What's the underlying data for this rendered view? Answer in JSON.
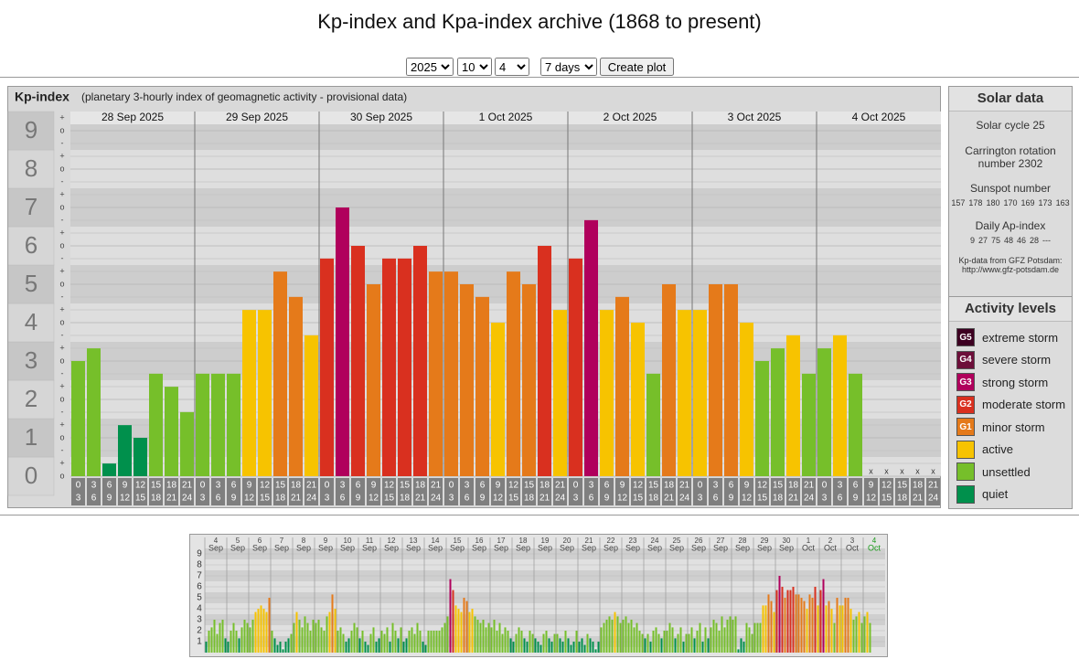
{
  "header": {
    "title": "Kp-index and Kpa-index archive (1868 to present)"
  },
  "controls": {
    "year": "2025",
    "month": "10",
    "day": "4",
    "span": "7 days",
    "button": "Create plot"
  },
  "chart_data": [
    {
      "type": "bar",
      "title": "Kp-index",
      "subtitle": "(planetary 3-hourly index of geomagnetic activity - provisional data)",
      "days": [
        "28 Sep 2025",
        "29 Sep 2025",
        "30 Sep 2025",
        "1 Oct 2025",
        "2 Oct 2025",
        "3 Oct 2025",
        "4 Oct 2025"
      ],
      "interval_starts": [
        "0",
        "3",
        "6",
        "9",
        "12",
        "15",
        "18",
        "21"
      ],
      "interval_ends": [
        "3",
        "6",
        "9",
        "12",
        "15",
        "18",
        "21",
        "24"
      ],
      "values": [
        3,
        3.33,
        0.33,
        1.33,
        1,
        2.67,
        2.33,
        1.67,
        2.67,
        2.67,
        2.67,
        4.33,
        4.33,
        5.33,
        4.67,
        3.67,
        5.67,
        7,
        6,
        5,
        5.67,
        5.67,
        6,
        5.33,
        5.33,
        5,
        4.67,
        4,
        5.33,
        5,
        6,
        4.33,
        5.67,
        6.67,
        4.33,
        4.67,
        4,
        2.67,
        5,
        4.33,
        4.33,
        5,
        5,
        4,
        3,
        3.33,
        3.67,
        2.67,
        3.33,
        3.67,
        2.67,
        null,
        null,
        null,
        null,
        null
      ],
      "missing_label": "x",
      "subtick_labels": {
        "minus": "-",
        "zero": "o",
        "plus": "+"
      },
      "ylim": [
        0,
        9.5
      ],
      "yticks": [
        0,
        1,
        2,
        3,
        4,
        5,
        6,
        7,
        8,
        9
      ],
      "grid": true
    },
    {
      "type": "bar",
      "days": [
        {
          "day": "4",
          "month": "Sep"
        },
        {
          "day": "5",
          "month": "Sep"
        },
        {
          "day": "6",
          "month": "Sep"
        },
        {
          "day": "7",
          "month": "Sep"
        },
        {
          "day": "8",
          "month": "Sep"
        },
        {
          "day": "9",
          "month": "Sep"
        },
        {
          "day": "10",
          "month": "Sep"
        },
        {
          "day": "11",
          "month": "Sep"
        },
        {
          "day": "12",
          "month": "Sep"
        },
        {
          "day": "13",
          "month": "Sep"
        },
        {
          "day": "14",
          "month": "Sep"
        },
        {
          "day": "15",
          "month": "Sep"
        },
        {
          "day": "16",
          "month": "Sep"
        },
        {
          "day": "17",
          "month": "Sep"
        },
        {
          "day": "18",
          "month": "Sep"
        },
        {
          "day": "19",
          "month": "Sep"
        },
        {
          "day": "20",
          "month": "Sep"
        },
        {
          "day": "21",
          "month": "Sep"
        },
        {
          "day": "22",
          "month": "Sep"
        },
        {
          "day": "23",
          "month": "Sep"
        },
        {
          "day": "24",
          "month": "Sep"
        },
        {
          "day": "25",
          "month": "Sep"
        },
        {
          "day": "26",
          "month": "Sep"
        },
        {
          "day": "27",
          "month": "Sep"
        },
        {
          "day": "28",
          "month": "Sep"
        },
        {
          "day": "29",
          "month": "Sep"
        },
        {
          "day": "30",
          "month": "Sep"
        },
        {
          "day": "1",
          "month": "Oct"
        },
        {
          "day": "2",
          "month": "Oct"
        },
        {
          "day": "3",
          "month": "Oct"
        },
        {
          "day": "4",
          "month": "Oct"
        }
      ],
      "values": [
        1,
        2,
        2.3,
        3,
        1.7,
        2.7,
        3,
        1.3,
        1,
        2,
        2.7,
        2,
        1.3,
        2.3,
        3,
        2.7,
        2.3,
        3,
        3.7,
        4,
        4.3,
        4,
        3.7,
        5,
        2,
        1.3,
        0.7,
        1,
        0.3,
        1,
        1.3,
        1.7,
        2.7,
        3.7,
        3,
        2.3,
        3.3,
        2.7,
        2,
        3,
        2.7,
        3,
        2.3,
        2,
        3.3,
        3.7,
        5.3,
        4,
        2,
        2.3,
        1.7,
        1,
        1.3,
        2,
        2.7,
        2.3,
        1.3,
        2,
        1,
        0.7,
        1.7,
        2.3,
        1,
        1.3,
        2,
        1.7,
        2.3,
        1,
        2.7,
        2,
        1.3,
        2.3,
        1,
        1.3,
        2,
        2.3,
        1.7,
        2.7,
        2,
        1,
        0.7,
        2,
        2,
        2,
        2,
        2,
        2.3,
        2.7,
        3.3,
        6.7,
        5.7,
        4.3,
        4,
        3.7,
        5,
        4.7,
        3.7,
        4,
        3.3,
        3,
        2.7,
        3,
        2.3,
        2.7,
        2.3,
        3,
        2,
        2.7,
        1.7,
        2.3,
        2,
        1.3,
        1,
        1.7,
        2.3,
        2,
        1.3,
        1,
        2,
        1.7,
        1.3,
        1,
        0.7,
        1.7,
        2,
        1.3,
        1,
        1.7,
        1.7,
        1.3,
        1,
        2,
        1.3,
        0.7,
        1,
        2,
        1,
        1.3,
        0.7,
        1.7,
        1.3,
        1,
        0.3,
        1,
        2.3,
        2.7,
        3,
        3.3,
        3,
        3.7,
        3.3,
        2.7,
        3,
        3.3,
        2.7,
        3,
        2.3,
        2.7,
        2,
        1.7,
        1.3,
        1.7,
        1,
        2,
        2.3,
        1.7,
        1.3,
        2,
        2,
        2.7,
        2.3,
        1.3,
        1.7,
        2.3,
        1,
        1.7,
        1.7,
        2.3,
        1.3,
        2,
        2.7,
        1,
        2.3,
        1.3,
        2.3,
        3,
        2.7,
        2,
        3.3,
        2.3,
        3,
        3.3,
        3,
        3.3,
        0.3,
        1.3,
        1,
        2.7,
        2.3,
        1.7,
        2.7,
        2.7,
        2.7,
        4.3,
        4.3,
        5.3,
        4.7,
        3.7,
        5.7,
        7,
        6,
        5,
        5.7,
        5.7,
        6,
        5.3,
        5.3,
        5,
        4.7,
        4,
        5.3,
        5,
        6,
        4.3,
        5.7,
        6.7,
        4.3,
        4.7,
        4,
        2.7,
        5,
        4.3,
        4.3,
        5,
        5,
        4,
        3,
        3.3,
        3.7,
        2.7,
        3.3,
        3.7,
        2.7,
        null,
        null,
        null,
        null,
        null
      ],
      "highlight_color": "#1a9a1a",
      "ylim": [
        0,
        10
      ],
      "yticks": [
        1,
        2,
        3,
        4,
        5,
        6,
        7,
        8,
        9
      ],
      "grid": true
    }
  ],
  "solar_data": {
    "title": "Solar data",
    "cycle": "Solar cycle 25",
    "carrington": "Carrington rotation number 2302",
    "sunspot_title": "Sunspot number",
    "sunspot": [
      157,
      178,
      180,
      170,
      169,
      173,
      163
    ],
    "ap_title": "Daily Ap-index",
    "ap": [
      9,
      27,
      75,
      48,
      46,
      28,
      "---"
    ],
    "source": "Kp-data from GFZ Potsdam:",
    "url": "http://www.gfz-potsdam.de"
  },
  "activity_levels": {
    "title": "Activity levels",
    "items": [
      {
        "code": "G5",
        "name": "extreme storm",
        "color": "#3d0021"
      },
      {
        "code": "G4",
        "name": "severe storm",
        "color": "#6d0f3a"
      },
      {
        "code": "G3",
        "name": "strong storm",
        "color": "#b0005c"
      },
      {
        "code": "G2",
        "name": "moderate storm",
        "color": "#d9301f"
      },
      {
        "code": "G1",
        "name": "minor storm",
        "color": "#e57a1a"
      },
      {
        "name": "active",
        "color": "#f7c300"
      },
      {
        "name": "unsettled",
        "color": "#76bf2a"
      },
      {
        "name": "quiet",
        "color": "#00904c"
      }
    ]
  }
}
